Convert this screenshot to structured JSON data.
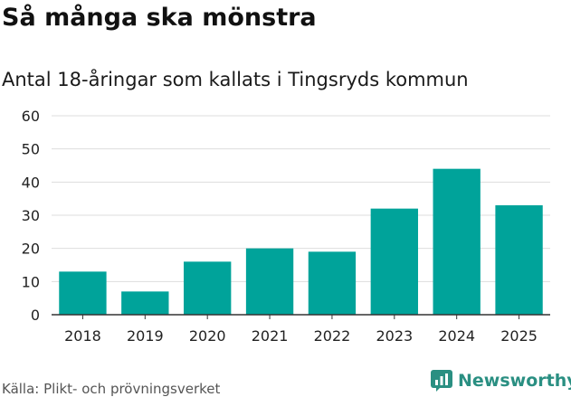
{
  "header": {
    "title": "Så många ska mönstra",
    "subtitle": "Antal 18-åringar som kallats i Tingsryds kommun"
  },
  "footer": {
    "source": "Källa: Plikt- och prövningsverket",
    "brand": "Newsworthy"
  },
  "colors": {
    "bar": "#00a39a",
    "brand": "#2a8f82",
    "grid": "#dddddd",
    "axis": "#333333"
  },
  "chart_data": {
    "type": "bar",
    "title": "Så många ska mönstra",
    "subtitle": "Antal 18-åringar som kallats i Tingsryds kommun",
    "categories": [
      "2018",
      "2019",
      "2020",
      "2021",
      "2022",
      "2023",
      "2024",
      "2025"
    ],
    "values": [
      13,
      7,
      16,
      20,
      19,
      32,
      44,
      33
    ],
    "yticks": [
      0,
      10,
      20,
      30,
      40,
      50,
      60
    ],
    "ylim": [
      0,
      60
    ],
    "xlabel": "",
    "ylabel": "",
    "grid": true
  }
}
